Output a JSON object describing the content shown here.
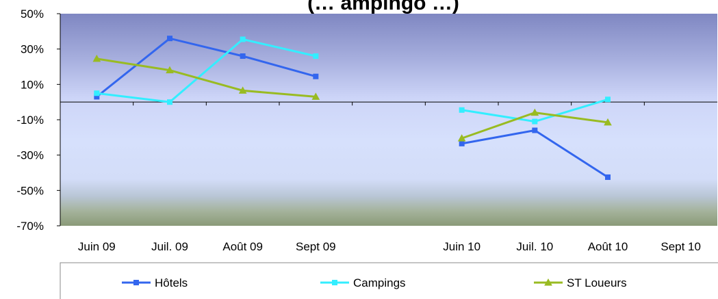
{
  "chart_data": {
    "type": "line",
    "title": "(… ampingo …)",
    "categories": [
      "Juin 09",
      "Juil. 09",
      "Août 09",
      "Sept 09",
      "",
      "Juin 10",
      "Juil. 10",
      "Août 10",
      "Sept 10"
    ],
    "ylim": [
      -70,
      50
    ],
    "yticks": [
      "50%",
      "30%",
      "10%",
      "-10%",
      "-30%",
      "-50%",
      "-70%"
    ],
    "ytick_values": [
      50,
      30,
      10,
      -10,
      -30,
      -50,
      -70
    ],
    "series": [
      {
        "name": "Hôtels",
        "color": "#3366ee",
        "marker": "square",
        "values": [
          3,
          36,
          26,
          14.5,
          null,
          -23.5,
          -16,
          -42.5,
          null
        ]
      },
      {
        "name": "Campings",
        "color": "#33eeff",
        "marker": "square",
        "values": [
          5,
          0,
          35.5,
          26,
          null,
          -4.5,
          -11,
          1.5,
          null
        ]
      },
      {
        "name": "ST Loueurs",
        "color": "#99bb22",
        "marker": "triangle",
        "values": [
          24.5,
          18,
          6.5,
          3,
          null,
          -20.5,
          -6,
          -11.5,
          null
        ]
      }
    ],
    "grid": false,
    "legend_position": "bottom"
  }
}
